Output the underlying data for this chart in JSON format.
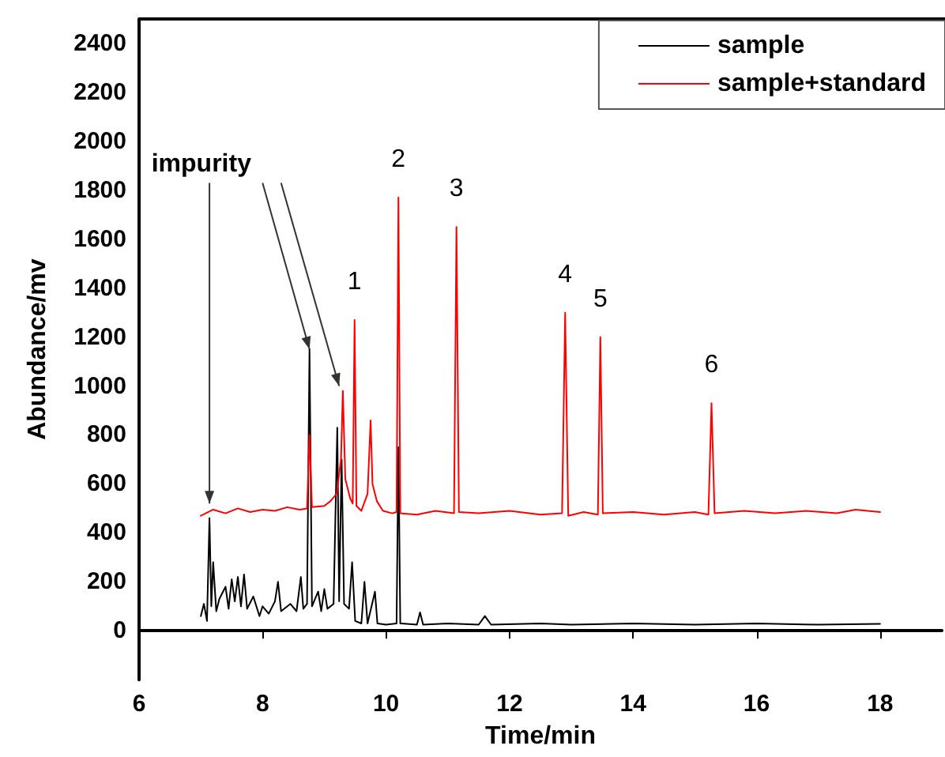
{
  "chart_data": {
    "type": "line",
    "xlabel": "Time/min",
    "ylabel": "Abundance/mv",
    "xlim": [
      6,
      19
    ],
    "xticks": [
      6,
      8,
      10,
      12,
      14,
      16,
      18
    ],
    "ylim": [
      -200,
      2500
    ],
    "yticks": [
      0,
      200,
      400,
      600,
      800,
      1000,
      1200,
      1400,
      1600,
      1800,
      2000,
      2200,
      2400
    ],
    "grid": false,
    "legend": "top right",
    "marker": "none",
    "line_style": "solid",
    "series": [
      {
        "name": "sample",
        "color": "#000000",
        "x": [
          7.0,
          7.05,
          7.1,
          7.14,
          7.17,
          7.2,
          7.25,
          7.3,
          7.4,
          7.45,
          7.5,
          7.55,
          7.6,
          7.65,
          7.7,
          7.75,
          7.85,
          7.95,
          8.0,
          8.1,
          8.2,
          8.25,
          8.3,
          8.45,
          8.55,
          8.62,
          8.66,
          8.72,
          8.76,
          8.8,
          8.9,
          8.95,
          9.0,
          9.05,
          9.15,
          9.21,
          9.24,
          9.28,
          9.32,
          9.4,
          9.45,
          9.5,
          9.6,
          9.65,
          9.7,
          9.82,
          9.86,
          10.0,
          10.17,
          10.2,
          10.23,
          10.5,
          10.55,
          10.6,
          11.0,
          11.5,
          11.6,
          11.7,
          12.5,
          13.0,
          14.0,
          15.0,
          16.0,
          17.0,
          18.0
        ],
        "values": [
          60,
          110,
          40,
          460,
          100,
          280,
          80,
          130,
          180,
          90,
          210,
          120,
          220,
          100,
          230,
          90,
          140,
          60,
          100,
          70,
          120,
          200,
          80,
          110,
          80,
          220,
          90,
          110,
          1150,
          100,
          160,
          80,
          170,
          90,
          110,
          830,
          120,
          700,
          110,
          90,
          280,
          40,
          30,
          200,
          30,
          160,
          30,
          25,
          30,
          750,
          30,
          25,
          75,
          25,
          30,
          25,
          60,
          25,
          30,
          25,
          30,
          25,
          30,
          25,
          28
        ]
      },
      {
        "name": "sample+standard",
        "color": "#ff0000",
        "x": [
          7.0,
          7.2,
          7.4,
          7.6,
          7.8,
          8.0,
          8.2,
          8.4,
          8.6,
          8.72,
          8.76,
          8.8,
          9.0,
          9.1,
          9.2,
          9.27,
          9.3,
          9.34,
          9.42,
          9.46,
          9.49,
          9.52,
          9.6,
          9.7,
          9.75,
          9.78,
          9.85,
          9.95,
          10.1,
          10.17,
          10.2,
          10.23,
          10.5,
          10.8,
          11.1,
          11.14,
          11.18,
          11.5,
          12.0,
          12.5,
          12.85,
          12.9,
          12.95,
          13.2,
          13.43,
          13.47,
          13.51,
          14.0,
          14.5,
          15.0,
          15.22,
          15.27,
          15.32,
          15.8,
          16.3,
          16.8,
          17.3,
          17.6,
          18.0
        ],
        "values": [
          470,
          495,
          480,
          500,
          485,
          495,
          490,
          505,
          495,
          500,
          800,
          505,
          510,
          530,
          560,
          700,
          980,
          620,
          540,
          520,
          1270,
          510,
          490,
          560,
          860,
          600,
          530,
          490,
          480,
          485,
          1770,
          480,
          475,
          490,
          480,
          1650,
          485,
          480,
          490,
          475,
          480,
          1300,
          470,
          485,
          475,
          1200,
          480,
          485,
          475,
          485,
          475,
          930,
          480,
          490,
          480,
          490,
          480,
          495,
          485
        ]
      }
    ],
    "annotations": [
      {
        "text": "impurity",
        "x": 8.76,
        "y": 1150
      },
      {
        "text": "1",
        "x": 9.49,
        "y": 1270
      },
      {
        "text": "2",
        "x": 10.2,
        "y": 1770
      },
      {
        "text": "3",
        "x": 11.14,
        "y": 1650
      },
      {
        "text": "4",
        "x": 12.9,
        "y": 1300
      },
      {
        "text": "5",
        "x": 13.47,
        "y": 1200
      },
      {
        "text": "6",
        "x": 15.27,
        "y": 930
      }
    ]
  }
}
